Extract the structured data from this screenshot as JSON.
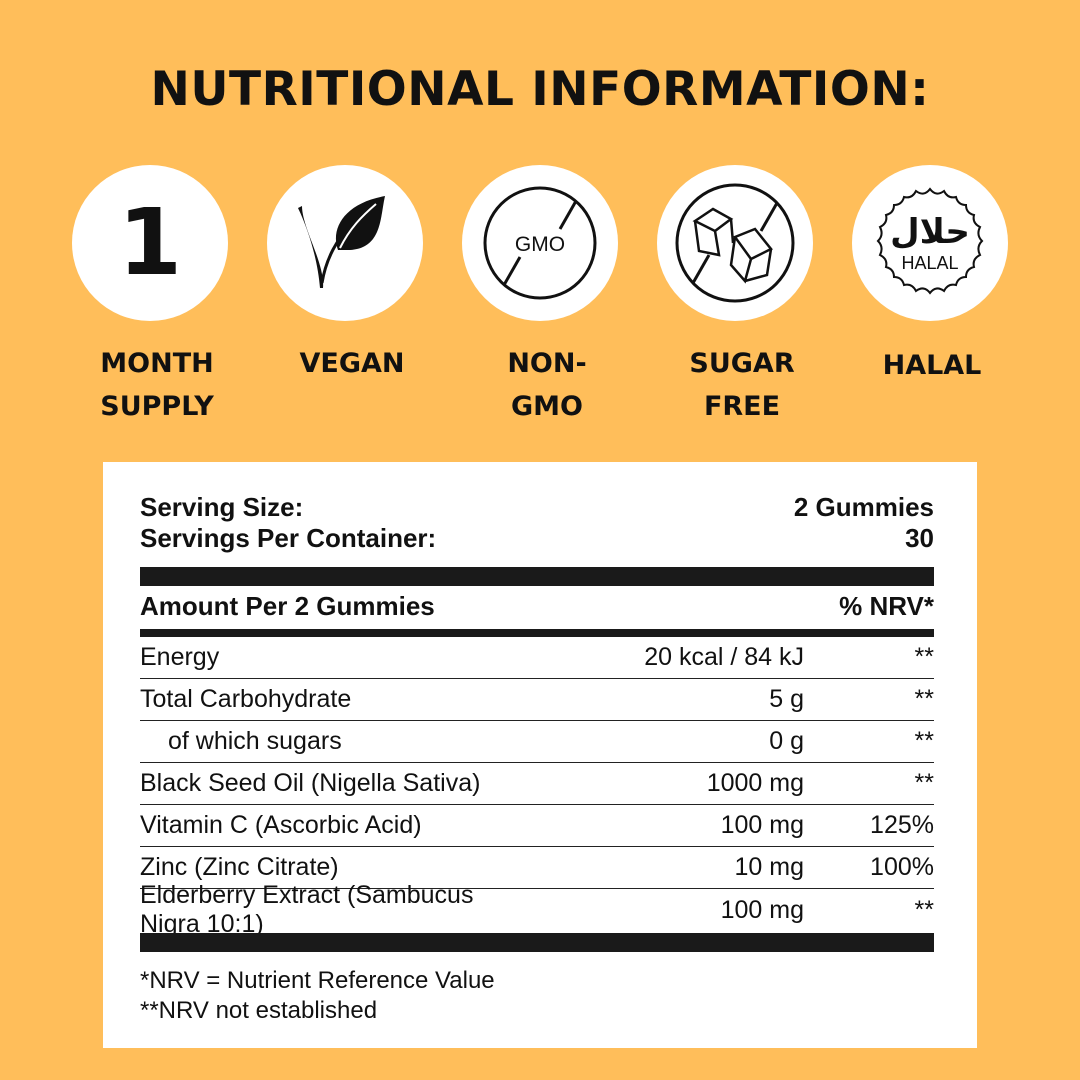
{
  "title": "NUTRITIONAL INFORMATION:",
  "colors": {
    "background": "#FFBE5A",
    "panel": "#FFFFFF",
    "text": "#111111"
  },
  "badges": [
    {
      "icon": "number-one-icon",
      "glyph": "1",
      "label1": "MONTH",
      "label2": "SUPPLY"
    },
    {
      "icon": "vegan-leaf-icon",
      "label1": "VEGAN",
      "label2": ""
    },
    {
      "icon": "no-gmo-icon",
      "glyph": "GMO",
      "label1": "NON-",
      "label2": "GMO"
    },
    {
      "icon": "no-sugar-cubes-icon",
      "label1": "SUGAR",
      "label2": "FREE"
    },
    {
      "icon": "halal-seal-icon",
      "arabic": "حلال",
      "glyph": "HALAL",
      "label1": "HALAL",
      "label2": ""
    }
  ],
  "panel": {
    "serving_size_label": "Serving Size:",
    "serving_size_value": "2 Gummies",
    "servings_label": "Servings Per Container:",
    "servings_value": "30",
    "amount_header": "Amount Per 2 Gummies",
    "nrv_header": "% NRV*",
    "rows": [
      {
        "name": "Energy",
        "amount": "20 kcal / 84 kJ",
        "nrv": "**"
      },
      {
        "name": "Total Carbohydrate",
        "amount": "5 g",
        "nrv": "**"
      },
      {
        "name": "of which sugars",
        "amount": "0 g",
        "nrv": "**"
      },
      {
        "name": "Black Seed Oil (Nigella Sativa)",
        "amount": "1000 mg",
        "nrv": "**"
      },
      {
        "name": "Vitamin C (Ascorbic Acid)",
        "amount": "100 mg",
        "nrv": "125%"
      },
      {
        "name": "Zinc (Zinc Citrate)",
        "amount": "10 mg",
        "nrv": "100%"
      },
      {
        "name": "Elderberry Extract (Sambucus Nigra 10:1)",
        "amount": "100 mg",
        "nrv": "**"
      }
    ],
    "footnote1": "*NRV = Nutrient Reference Value",
    "footnote2": "**NRV not established"
  }
}
